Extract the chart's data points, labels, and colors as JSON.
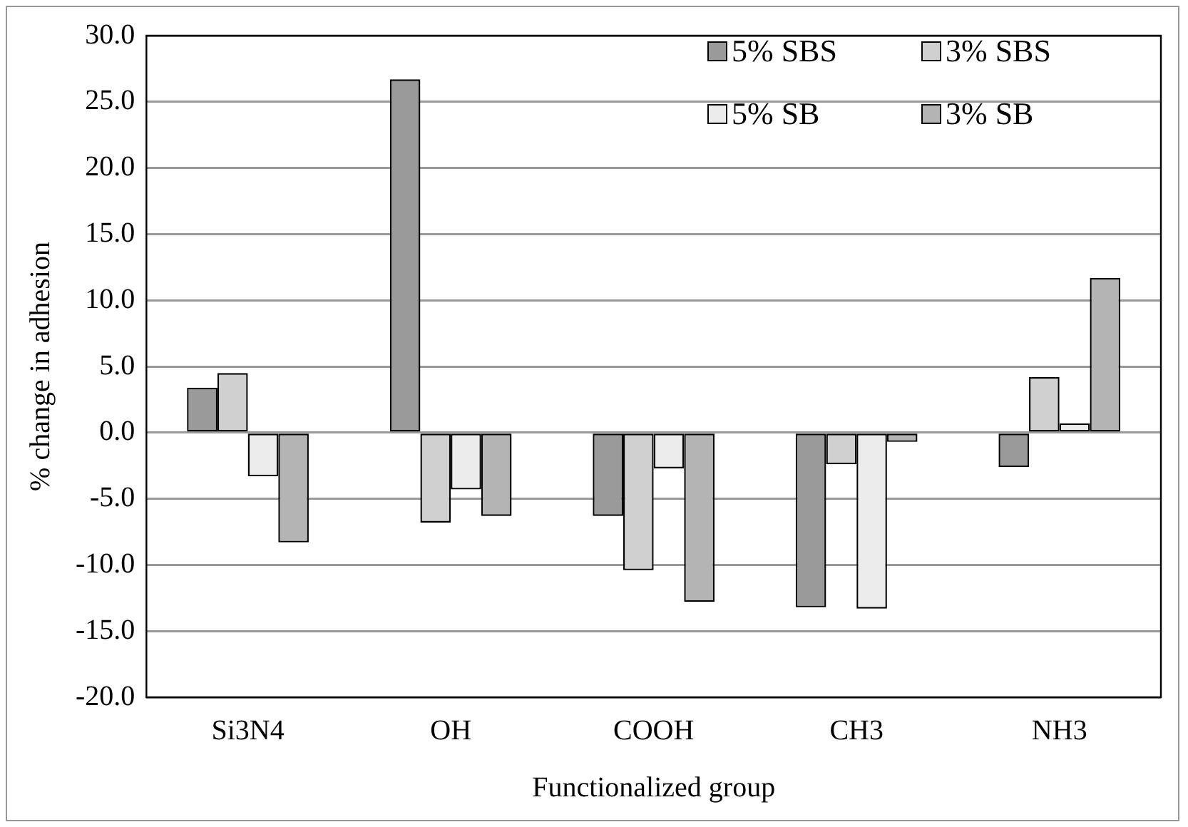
{
  "chart_data": {
    "type": "bar",
    "xlabel": "Functionalized group",
    "ylabel": "% change in adhesion",
    "categories": [
      "Si3N4",
      "OH",
      "COOH",
      "CH3",
      "NH3"
    ],
    "series": [
      {
        "name": "5% SBS",
        "color": "#9a9a9a",
        "values": [
          3.4,
          26.7,
          -6.3,
          -13.2,
          -2.6
        ]
      },
      {
        "name": "3% SBS",
        "color": "#d0d0d0",
        "values": [
          4.5,
          -6.8,
          -10.4,
          -2.4,
          4.2
        ]
      },
      {
        "name": "5% SB",
        "color": "#ececec",
        "values": [
          -3.3,
          -4.3,
          -2.7,
          -13.3,
          0.7
        ]
      },
      {
        "name": "3% SB",
        "color": "#b4b4b4",
        "values": [
          -8.3,
          -6.3,
          -12.8,
          -0.7,
          11.7
        ]
      }
    ],
    "ylim": [
      -20,
      30
    ],
    "yticks": [
      {
        "value": -20,
        "label": "-20.0"
      },
      {
        "value": -15,
        "label": "-15.0"
      },
      {
        "value": -10,
        "label": "-10.0"
      },
      {
        "value": -5,
        "label": "-5.0"
      },
      {
        "value": 0,
        "label": "0.0"
      },
      {
        "value": 5,
        "label": "5.0"
      },
      {
        "value": 10,
        "label": "10.0"
      },
      {
        "value": 15,
        "label": "15.0"
      },
      {
        "value": 20,
        "label": "20.0"
      },
      {
        "value": 25,
        "label": "25.0"
      },
      {
        "value": 30,
        "label": "30.0"
      }
    ],
    "grid": "y",
    "legend": "top right"
  }
}
